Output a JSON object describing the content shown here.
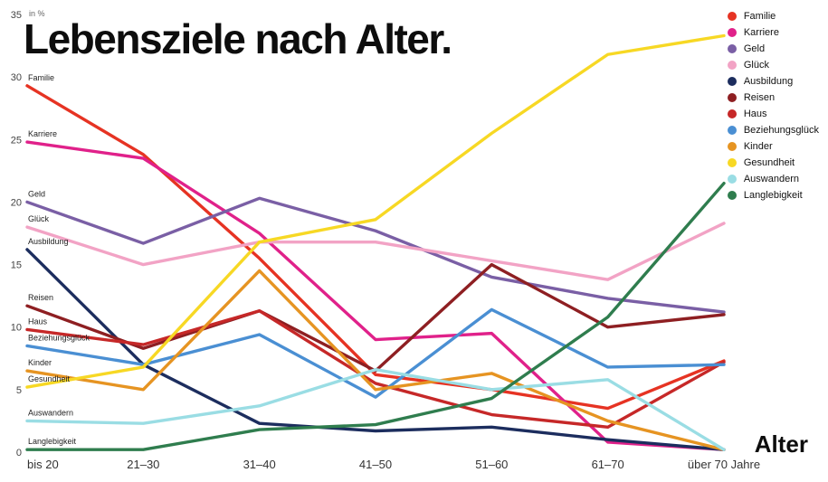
{
  "title": "Lebensziele nach Alter.",
  "y_axis": {
    "unit_label": "in %",
    "ticks": [
      0,
      5,
      10,
      15,
      20,
      25,
      30,
      35
    ]
  },
  "chart_data": {
    "type": "line",
    "title": "Lebensziele nach Alter.",
    "xlabel": "Alter",
    "ylabel": "in %",
    "ylim": [
      0,
      35
    ],
    "grid": false,
    "legend_position": "top-right",
    "categories": [
      "bis 20",
      "21–30",
      "31–40",
      "41–50",
      "51–60",
      "61–70",
      "über 70 Jahre"
    ],
    "series": [
      {
        "name": "Familie",
        "color": "#e63323",
        "values": [
          29.3,
          23.8,
          15.5,
          6.2,
          5.0,
          3.5,
          7.3
        ]
      },
      {
        "name": "Karriere",
        "color": "#e0218a",
        "values": [
          24.8,
          23.5,
          17.5,
          9.0,
          9.5,
          0.8,
          0.2
        ]
      },
      {
        "name": "Geld",
        "color": "#7a5fa5",
        "values": [
          20.0,
          16.7,
          20.3,
          17.7,
          14.0,
          12.3,
          11.2
        ]
      },
      {
        "name": "Glück",
        "color": "#f2a3c5",
        "values": [
          18.0,
          15.0,
          16.8,
          16.8,
          15.3,
          13.8,
          18.3
        ]
      },
      {
        "name": "Ausbildung",
        "color": "#1c2d5e",
        "values": [
          16.2,
          7.0,
          2.3,
          1.7,
          2.0,
          1.0,
          0.2
        ]
      },
      {
        "name": "Reisen",
        "color": "#8e1f22",
        "values": [
          11.7,
          8.3,
          11.3,
          6.5,
          15.0,
          10.0,
          11.0
        ]
      },
      {
        "name": "Haus",
        "color": "#c62828",
        "values": [
          9.8,
          8.6,
          11.3,
          5.5,
          3.0,
          2.0,
          7.2
        ]
      },
      {
        "name": "Beziehungsglück",
        "color": "#4a8fd3",
        "values": [
          8.5,
          7.0,
          9.4,
          4.4,
          11.4,
          6.8,
          7.0
        ]
      },
      {
        "name": "Kinder",
        "color": "#e69422",
        "values": [
          6.5,
          5.0,
          14.5,
          5.0,
          6.3,
          2.5,
          0.2
        ]
      },
      {
        "name": "Gesundheit",
        "color": "#f7d824",
        "values": [
          5.2,
          6.8,
          16.8,
          18.6,
          25.5,
          31.8,
          33.3
        ]
      },
      {
        "name": "Auswandern",
        "color": "#9adde4",
        "values": [
          2.5,
          2.3,
          3.7,
          6.6,
          5.0,
          5.8,
          0.2
        ]
      },
      {
        "name": "Langlebigkeit",
        "color": "#2f7d4e",
        "values": [
          0.2,
          0.2,
          1.8,
          2.2,
          4.3,
          10.8,
          21.5
        ]
      }
    ]
  }
}
